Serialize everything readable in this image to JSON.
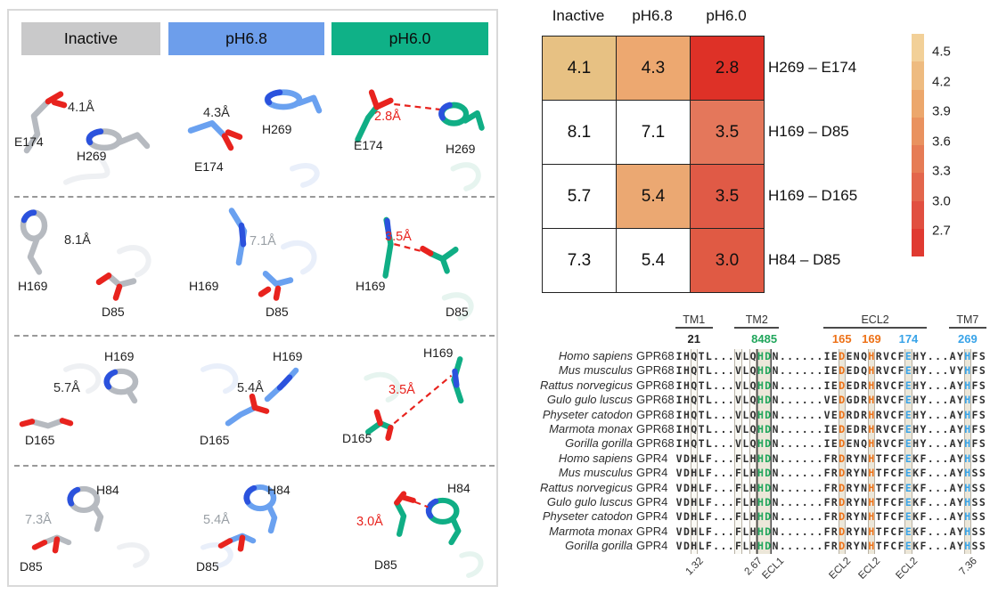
{
  "structure_panel": {
    "headers": [
      {
        "label": "Inactive",
        "color": "#c9c9ca"
      },
      {
        "label": "pH6.8",
        "color": "#6d9eeb"
      },
      {
        "label": "pH6.0",
        "color": "#0fb187"
      }
    ],
    "rows": [
      {
        "cells": [
          {
            "distance": "4.1Å",
            "labelA": "E174",
            "labelB": "H269"
          },
          {
            "distance": "4.3Å",
            "labelA": "E174",
            "labelB": "H269"
          },
          {
            "distance": "2.8Å",
            "labelA": "E174",
            "labelB": "H269"
          }
        ]
      },
      {
        "cells": [
          {
            "distance": "8.1Å",
            "labelA": "H169",
            "labelB": "D85"
          },
          {
            "distance": "7.1Å",
            "labelA": "H169",
            "labelB": "D85"
          },
          {
            "distance": "3.5Å",
            "labelA": "H169",
            "labelB": "D85"
          }
        ]
      },
      {
        "cells": [
          {
            "distance": "5.7Å",
            "labelA": "D165",
            "labelB": "H169"
          },
          {
            "distance": "5.4Å",
            "labelA": "D165",
            "labelB": "H169"
          },
          {
            "distance": "3.5Å",
            "labelA": "D165",
            "labelB": "H169"
          }
        ]
      },
      {
        "cells": [
          {
            "distance": "7.3Å",
            "labelA": "D85",
            "labelB": "H84"
          },
          {
            "distance": "5.4Å",
            "labelA": "D85",
            "labelB": "H84"
          },
          {
            "distance": "3.0Å",
            "labelA": "D85",
            "labelB": "H84"
          }
        ]
      }
    ]
  },
  "heatmap": {
    "col_headers": [
      "Inactive",
      "pH6.8",
      "pH6.0"
    ],
    "rows": [
      {
        "pair": "H269 – E174",
        "values": [
          "4.1",
          "4.3",
          "2.8"
        ],
        "colors": [
          "#e7c183",
          "#eda870",
          "#de3127"
        ]
      },
      {
        "pair": "H169 – D85",
        "values": [
          "8.1",
          "7.1",
          "3.5"
        ],
        "colors": [
          "#ffffff",
          "#ffffff",
          "#e4775b"
        ]
      },
      {
        "pair": "H169 – D165",
        "values": [
          "5.7",
          "5.4",
          "3.5"
        ],
        "colors": [
          "#ffffff",
          "#eba872",
          "#e05a46"
        ]
      },
      {
        "pair": "H84 – D85",
        "values": [
          "7.3",
          "5.4",
          "3.0"
        ],
        "colors": [
          "#ffffff",
          "#ffffff",
          "#e05a44"
        ]
      }
    ],
    "colorbar": {
      "ticks": [
        "4.5",
        "4.2",
        "3.9",
        "3.6",
        "3.3",
        "3.0",
        "2.7"
      ],
      "band_colors": [
        "#f2d098",
        "#eebb80",
        "#eca76c",
        "#e9925f",
        "#e67c55",
        "#e3664c",
        "#e14f40",
        "#e03a31"
      ]
    }
  },
  "alignment": {
    "regions": [
      {
        "label": "TM1",
        "start": 0,
        "end": 4
      },
      {
        "label": "TM2",
        "start": 8,
        "end": 13
      },
      {
        "label": "ECL2",
        "start": 20,
        "end": 33
      },
      {
        "label": "TM7",
        "start": 37,
        "end": 41
      }
    ],
    "position_numbers": [
      {
        "text": "21",
        "col": 2,
        "color": "#222222"
      },
      {
        "text": "8485",
        "col": 11.5,
        "color": "#21a65c"
      },
      {
        "text": "165",
        "col": 22,
        "color": "#ed7117"
      },
      {
        "text": "169",
        "col": 26,
        "color": "#ed7117"
      },
      {
        "text": "174",
        "col": 31,
        "color": "#38a3e8"
      },
      {
        "text": "269",
        "col": 39,
        "color": "#38a3e8"
      }
    ],
    "green_cols": [
      11,
      12
    ],
    "orange_cols": [
      22,
      26
    ],
    "blue_cols": [
      31,
      39
    ],
    "box_cols_light": [
      2,
      8,
      10
    ],
    "box_cols_beige": [
      22,
      26,
      31,
      39
    ],
    "rows": [
      {
        "species": "Homo sapiens",
        "gene": "GPR68",
        "seq": "IHQTL...VLQHDN......IEDENQHRVCFEHY...AYHFS"
      },
      {
        "species": "Mus musculus",
        "gene": "GPR68",
        "seq": "IHQTL...VLQHDN......IEDEDQHRVCFEHY...VYHFS"
      },
      {
        "species": "Rattus norvegicus",
        "gene": "GPR68",
        "seq": "IHQTL...VLQHDN......IEDEDRHRVCFEHY...AYHFS"
      },
      {
        "species": "Gulo gulo luscus",
        "gene": "GPR68",
        "seq": "IHQTL...VLQHDN......VEDGDRHRVCFEHY...AYHFS"
      },
      {
        "species": "Physeter catodon",
        "gene": "GPR68",
        "seq": "IHQTL...VLQHDN......VEDRDRHRVCFEHY...AYHFS"
      },
      {
        "species": "Marmota monax",
        "gene": "GPR68",
        "seq": "IHQTL...VLQHDN......IEDEDRHRVCFEHY...AYHFS"
      },
      {
        "species": "Gorilla gorilla",
        "gene": "GPR68",
        "seq": "IHQTL...VLQHDN......IEDENQHRVCFEHY...AYHFS"
      },
      {
        "species": "Homo sapiens",
        "gene": "GPR4",
        "seq": "VDHLF...FLHHDN......FRDRYNHTFCFEKF...AYHSS"
      },
      {
        "species": "Mus musculus",
        "gene": "GPR4",
        "seq": "VDHLF...FLHHDN......FRDRYNHTFCFEKF...AYHSS"
      },
      {
        "species": "Rattus norvegicus",
        "gene": "GPR4",
        "seq": "VDHLF...FLHHDN......FRDRYNHTFCFEKF...AYHSS"
      },
      {
        "species": "Gulo gulo luscus",
        "gene": "GPR4",
        "seq": "VDHLF...FLHHDN......FRDRYNHTFCFEKF...AYHSS"
      },
      {
        "species": "Physeter catodon",
        "gene": "GPR4",
        "seq": "VDHLF...FLHHDN......FRDRYNHTFCFEKF...AYHSS"
      },
      {
        "species": "Marmota monax",
        "gene": "GPR4",
        "seq": "VDHLF...FLHHDN......FRDRYNHTFCFEKF...AYHSS"
      },
      {
        "species": "Gorilla gorilla",
        "gene": "GPR4",
        "seq": "VDHLF...FLHHDN......FRDRYNHTFCFEKF...AYHSS"
      }
    ],
    "bottom_labels": [
      {
        "text": "1.32",
        "col": 2
      },
      {
        "text": "2.67",
        "col": 10
      },
      {
        "text": "ECL1",
        "col": 13
      },
      {
        "text": "ECL2",
        "col": 22
      },
      {
        "text": "ECL2",
        "col": 26
      },
      {
        "text": "ECL2",
        "col": 31
      },
      {
        "text": "7.36",
        "col": 39
      }
    ]
  }
}
